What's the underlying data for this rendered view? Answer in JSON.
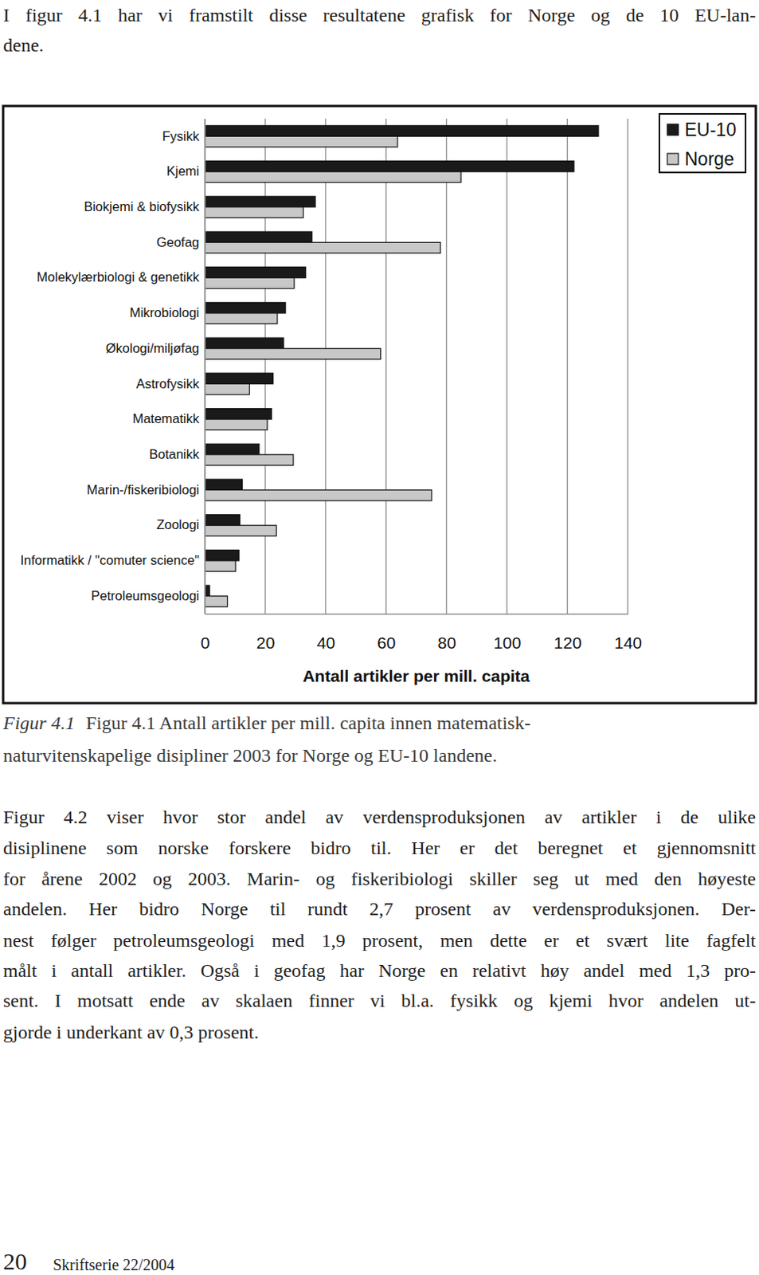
{
  "page": {
    "intro": [
      "I figur 4.1 har vi framstilt disse resultatene grafisk for Norge og de 10 EU-lan-",
      "dene."
    ],
    "caption": {
      "label": "Figur 4.1",
      "lines": [
        "Figur 4.1 Antall artikler per mill. capita innen matematisk-",
        "naturvitenskapelige disipliner 2003 for Norge og EU-10 landene."
      ]
    },
    "paragraph": [
      "Figur 4.2 viser hvor stor andel av verdensproduksjonen av artikler i de ulike",
      "disiplinene som norske forskere bidro til. Her er det beregnet et gjennomsnitt",
      "for årene 2002 og 2003. Marin- og fiskeribiologi skiller seg ut med den høyeste",
      "andelen. Her bidro Norge til rundt 2,7 prosent av verdensproduksjonen. Der-",
      "nest følger petroleumsgeologi med 1,9 prosent, men dette er et svært lite fagfelt",
      "målt i antall artikler. Også i geofag har Norge en relativt høy andel med 1,3 pro-",
      "sent. I motsatt ende av skalaen finner vi bl.a. fysikk og kjemi hvor andelen ut-",
      "gjorde i underkant av 0,3 prosent."
    ],
    "footer": {
      "page_number": "20",
      "series": "Skriftserie 22/2004"
    }
  },
  "chart_data": {
    "type": "bar",
    "orientation": "horizontal",
    "categories": [
      "Fysikk",
      "Kjemi",
      "Biokjemi & biofysikk",
      "Geofag",
      "Molekylærbiologi & genetikk",
      "Mikrobiologi",
      "Økologi/miljøfag",
      "Astrofysikk",
      "Matematikk",
      "Botanikk",
      "Marin-/fiskeribiologi",
      "Zoologi",
      "Informatikk / \"comuter science\"",
      "Petroleumsgeologi"
    ],
    "series": [
      {
        "name": "EU-10",
        "color": "#1a1a1a",
        "values": [
          130.3,
          122.2,
          36.6,
          35.5,
          33.4,
          26.7,
          26.1,
          22.6,
          22.1,
          18,
          12.4,
          11.6,
          11.3,
          1.6
        ]
      },
      {
        "name": "Norge",
        "color": "#c8c8c8",
        "values": [
          63.8,
          84.8,
          32.6,
          78,
          29.6,
          24,
          58.2,
          14.8,
          20.7,
          29.3,
          75.1,
          23.7,
          10.2,
          7.5
        ]
      }
    ],
    "x_label": "Antall artikler per mill. capita",
    "xlim": [
      0,
      140
    ],
    "xticks": [
      0,
      20,
      40,
      60,
      80,
      100,
      120,
      140
    ],
    "grid": true,
    "legend": "upper right"
  }
}
